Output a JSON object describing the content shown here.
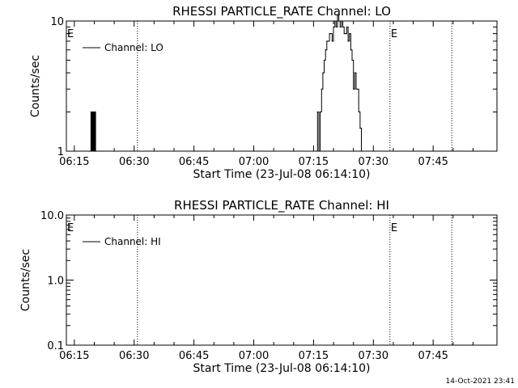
{
  "footer_timestamp": "14-Oct-2021 23:41",
  "chart_data": [
    {
      "type": "line",
      "title": "RHESSI PARTICLE_RATE Channel: LO",
      "xlabel": "Start Time (23-Jul-08 06:14:10)",
      "ylabel": "Counts/sec",
      "yscale": "log",
      "xlim": [
        "06:13:00",
        "08:01:00"
      ],
      "ylim": [
        1,
        10
      ],
      "xticks": [
        "06:15",
        "06:30",
        "06:45",
        "07:00",
        "07:15",
        "07:30",
        "07:45"
      ],
      "yticks": [
        "1",
        "10"
      ],
      "legend": "top-left",
      "series": [
        {
          "name": "Channel: LO",
          "style": "step",
          "x": [
            "06:18:50",
            "06:19:10",
            "06:19:20",
            "06:19:30",
            "06:19:40",
            "06:19:50",
            "06:20:00",
            "06:20:10",
            "06:20:20",
            "06:20:30",
            "07:15:40",
            "07:16:00",
            "07:16:20",
            "07:16:40",
            "07:17:00",
            "07:17:20",
            "07:17:40",
            "07:18:00",
            "07:18:20",
            "07:18:40",
            "07:19:00",
            "07:19:20",
            "07:19:40",
            "07:20:00",
            "07:20:20",
            "07:20:40",
            "07:21:00",
            "07:21:20",
            "07:21:40",
            "07:22:00",
            "07:22:20",
            "07:22:40",
            "07:23:00",
            "07:23:20",
            "07:23:40",
            "07:24:00",
            "07:24:20",
            "07:24:40",
            "07:25:00",
            "07:25:20",
            "07:25:40",
            "07:26:00",
            "07:26:20",
            "07:26:40",
            "07:27:00",
            "07:27:20"
          ],
          "y": [
            1,
            2,
            1,
            2,
            1,
            2,
            1,
            2,
            1,
            1,
            1,
            2,
            1,
            2,
            3,
            4,
            5,
            6,
            7,
            7,
            8,
            8,
            7,
            9,
            10,
            9,
            11,
            10,
            9,
            10,
            9,
            8,
            8,
            9,
            7,
            8,
            6,
            5,
            3,
            4,
            3,
            3,
            2,
            1.5,
            1,
            1
          ],
          "color": "#000000"
        }
      ],
      "vlines": [
        {
          "x": "06:30:50",
          "style": "dotted"
        },
        {
          "x": "07:34:10",
          "style": "dotted",
          "label": "E"
        },
        {
          "x": "07:49:40",
          "style": "dotted"
        }
      ],
      "corner_label": "E"
    },
    {
      "type": "line",
      "title": "RHESSI PARTICLE_RATE Channel: HI",
      "xlabel": "Start Time (23-Jul-08 06:14:10)",
      "ylabel": "Counts/sec",
      "yscale": "log",
      "xlim": [
        "06:13:00",
        "08:01:00"
      ],
      "ylim": [
        0.1,
        10
      ],
      "xticks": [
        "06:15",
        "06:30",
        "06:45",
        "07:00",
        "07:15",
        "07:30",
        "07:45"
      ],
      "yticks": [
        "0.1",
        "1.0",
        "10.0"
      ],
      "legend": "top-left",
      "series": [
        {
          "name": "Channel: HI",
          "style": "step",
          "x": [],
          "y": [],
          "color": "#000000"
        }
      ],
      "vlines": [
        {
          "x": "06:30:50",
          "style": "dotted"
        },
        {
          "x": "07:34:10",
          "style": "dotted",
          "label": "E"
        },
        {
          "x": "07:49:40",
          "style": "dotted"
        }
      ],
      "corner_label": "E"
    }
  ]
}
